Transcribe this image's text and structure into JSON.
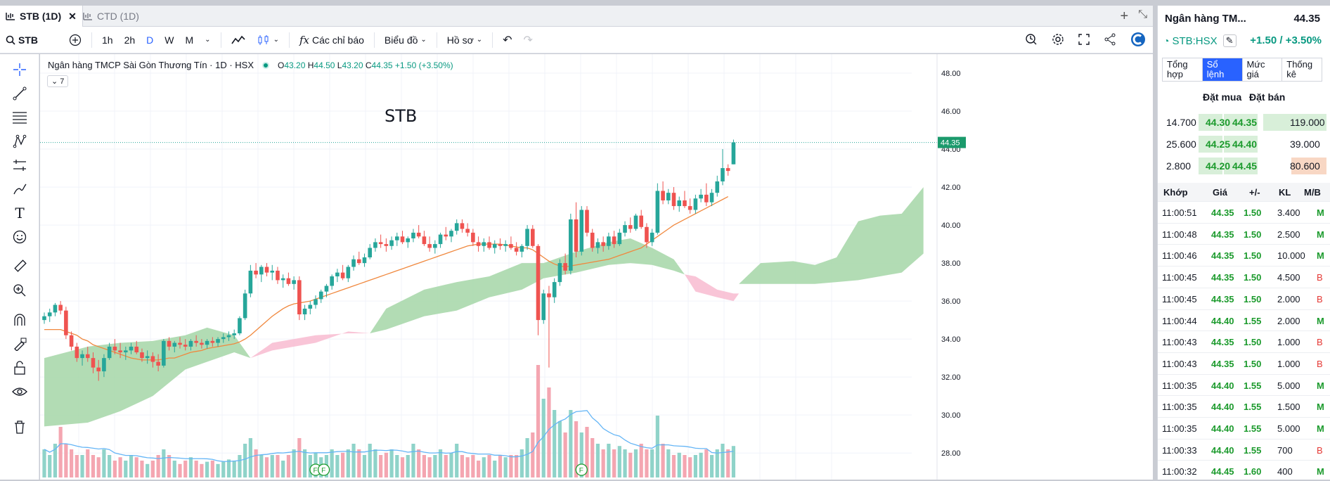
{
  "tabs": [
    {
      "label": "STB (1D)",
      "active": true
    },
    {
      "label": "CTD (1D)",
      "active": false
    }
  ],
  "toolbar": {
    "symbol": "STB",
    "intervals": [
      "1h",
      "2h",
      "D",
      "W",
      "M"
    ],
    "active_interval": "D",
    "indicators_label": "Các chỉ báo",
    "chart_label": "Biểu đồ",
    "profile_label": "Hồ sơ"
  },
  "legend": {
    "name": "Ngân hàng TMCP Sài Gòn Thương Tín · 1D · HSX",
    "o_label": "O",
    "o": "43.20",
    "h_label": "H",
    "h": "44.50",
    "l_label": "L",
    "l": "43.20",
    "c_label": "C",
    "c": "44.35",
    "change": "+1.50 (+3.50%)",
    "collapse_count": "7"
  },
  "chart_data": {
    "type": "candlestick",
    "watermark": "STB",
    "last_price_label": "44.35",
    "ylim": [
      26.6,
      49.0
    ],
    "yticks": [
      "48.00",
      "46.00",
      "44.00",
      "42.00",
      "40.00",
      "38.00",
      "36.00",
      "34.00",
      "32.00",
      "30.00",
      "28.00"
    ],
    "event_markers": [
      "F",
      "F",
      "F"
    ],
    "colors": {
      "up": "#26a69a",
      "down": "#ef5350",
      "ma": "#f0883e",
      "cloud_up": "#a5d6a7",
      "cloud_down": "#f8bbd0",
      "volume_ma": "#64b5f6"
    },
    "candles": [
      [
        35.0,
        35.4,
        34.8,
        35.2
      ],
      [
        35.2,
        35.6,
        34.9,
        35.4
      ],
      [
        35.4,
        35.9,
        35.2,
        35.8
      ],
      [
        35.8,
        36.0,
        35.3,
        35.5
      ],
      [
        35.5,
        35.7,
        34.0,
        34.2
      ],
      [
        34.2,
        34.4,
        33.4,
        33.6
      ],
      [
        33.6,
        33.8,
        32.8,
        33.0
      ],
      [
        33.0,
        33.4,
        32.6,
        33.2
      ],
      [
        33.2,
        33.6,
        32.8,
        33.0
      ],
      [
        33.0,
        33.3,
        32.2,
        32.5
      ],
      [
        32.5,
        32.9,
        31.8,
        32.3
      ],
      [
        32.3,
        33.2,
        32.0,
        33.0
      ],
      [
        33.0,
        33.8,
        32.9,
        33.6
      ],
      [
        33.6,
        34.0,
        33.2,
        33.4
      ],
      [
        33.4,
        33.8,
        33.0,
        33.3
      ],
      [
        33.3,
        33.6,
        32.9,
        33.4
      ],
      [
        33.4,
        33.8,
        33.2,
        33.6
      ],
      [
        33.6,
        33.9,
        33.2,
        33.3
      ],
      [
        33.3,
        33.5,
        32.8,
        33.0
      ],
      [
        33.0,
        33.4,
        32.7,
        33.1
      ],
      [
        33.1,
        33.3,
        32.5,
        32.8
      ],
      [
        32.8,
        33.2,
        32.3,
        32.6
      ],
      [
        32.6,
        34.0,
        32.5,
        33.9
      ],
      [
        33.9,
        34.1,
        33.4,
        33.6
      ],
      [
        33.6,
        33.9,
        33.3,
        33.8
      ],
      [
        33.8,
        34.1,
        33.5,
        33.7
      ],
      [
        33.7,
        34.0,
        33.4,
        33.6
      ],
      [
        33.6,
        34.0,
        33.4,
        33.9
      ],
      [
        33.9,
        34.2,
        33.6,
        33.8
      ],
      [
        33.8,
        34.0,
        33.5,
        33.7
      ],
      [
        33.7,
        34.0,
        33.5,
        33.9
      ],
      [
        33.9,
        34.1,
        33.6,
        33.8
      ],
      [
        33.8,
        34.1,
        33.6,
        34.0
      ],
      [
        34.0,
        34.3,
        33.8,
        34.1
      ],
      [
        34.1,
        34.4,
        33.9,
        34.2
      ],
      [
        34.2,
        34.5,
        34.0,
        34.3
      ],
      [
        34.3,
        35.2,
        34.2,
        35.1
      ],
      [
        35.1,
        36.6,
        35.0,
        36.4
      ],
      [
        36.4,
        37.9,
        36.2,
        37.6
      ],
      [
        37.6,
        38.0,
        37.2,
        37.4
      ],
      [
        37.4,
        37.9,
        37.0,
        37.8
      ],
      [
        37.8,
        38.0,
        37.3,
        37.5
      ],
      [
        37.5,
        37.9,
        37.1,
        37.6
      ],
      [
        37.6,
        37.8,
        36.9,
        37.1
      ],
      [
        37.1,
        37.4,
        36.7,
        37.2
      ],
      [
        37.2,
        37.5,
        36.8,
        36.9
      ],
      [
        36.9,
        37.3,
        36.6,
        37.1
      ],
      [
        37.1,
        37.3,
        35.0,
        35.3
      ],
      [
        35.3,
        35.8,
        35.0,
        35.6
      ],
      [
        35.6,
        36.0,
        35.3,
        35.8
      ],
      [
        35.8,
        36.3,
        35.6,
        36.1
      ],
      [
        36.1,
        36.6,
        35.9,
        36.5
      ],
      [
        36.5,
        36.9,
        36.2,
        36.8
      ],
      [
        36.8,
        37.4,
        36.6,
        37.3
      ],
      [
        37.3,
        37.7,
        37.0,
        37.5
      ],
      [
        37.5,
        37.9,
        37.1,
        37.2
      ],
      [
        37.2,
        37.9,
        37.0,
        37.8
      ],
      [
        37.8,
        38.4,
        37.6,
        38.2
      ],
      [
        38.2,
        38.6,
        37.9,
        38.0
      ],
      [
        38.0,
        38.5,
        37.8,
        38.3
      ],
      [
        38.3,
        39.0,
        38.2,
        38.8
      ],
      [
        38.8,
        39.3,
        38.6,
        39.1
      ],
      [
        39.1,
        39.5,
        38.8,
        39.0
      ],
      [
        39.0,
        39.3,
        38.6,
        38.9
      ],
      [
        38.9,
        39.4,
        38.7,
        39.2
      ],
      [
        39.2,
        39.6,
        38.9,
        39.4
      ],
      [
        39.4,
        39.7,
        39.0,
        39.1
      ],
      [
        39.1,
        39.4,
        38.8,
        39.3
      ],
      [
        39.3,
        39.8,
        39.1,
        39.6
      ],
      [
        39.6,
        40.0,
        39.3,
        39.4
      ],
      [
        39.4,
        39.7,
        38.9,
        39.0
      ],
      [
        39.0,
        39.4,
        38.6,
        38.8
      ],
      [
        38.8,
        39.2,
        38.5,
        39.0
      ],
      [
        39.0,
        39.6,
        38.8,
        39.5
      ],
      [
        39.5,
        39.9,
        39.2,
        39.4
      ],
      [
        39.4,
        39.8,
        39.1,
        39.7
      ],
      [
        39.7,
        40.3,
        39.5,
        40.1
      ],
      [
        40.1,
        40.3,
        39.6,
        39.8
      ],
      [
        39.8,
        40.1,
        39.4,
        39.6
      ],
      [
        39.6,
        39.8,
        38.9,
        39.1
      ],
      [
        39.1,
        39.4,
        38.6,
        38.9
      ],
      [
        38.9,
        39.3,
        38.6,
        39.1
      ],
      [
        39.1,
        39.4,
        38.7,
        38.8
      ],
      [
        38.8,
        39.2,
        38.5,
        39.0
      ],
      [
        39.0,
        39.3,
        38.7,
        38.9
      ],
      [
        38.9,
        39.2,
        38.6,
        39.0
      ],
      [
        39.0,
        39.4,
        38.7,
        38.8
      ],
      [
        38.8,
        39.1,
        38.4,
        38.6
      ],
      [
        38.6,
        39.0,
        38.3,
        38.9
      ],
      [
        38.9,
        40.0,
        38.7,
        39.8
      ],
      [
        39.8,
        40.0,
        38.8,
        38.9
      ],
      [
        38.9,
        39.0,
        34.2,
        35.0
      ],
      [
        35.0,
        36.6,
        34.8,
        36.4
      ],
      [
        36.4,
        36.8,
        32.5,
        36.2
      ],
      [
        36.2,
        37.2,
        35.9,
        37.0
      ],
      [
        37.0,
        38.2,
        36.8,
        38.0
      ],
      [
        38.0,
        38.5,
        37.4,
        37.6
      ],
      [
        37.6,
        40.6,
        37.4,
        40.3
      ],
      [
        40.3,
        41.2,
        38.3,
        38.6
      ],
      [
        38.6,
        41.0,
        38.4,
        40.8
      ],
      [
        40.8,
        41.0,
        39.4,
        39.6
      ],
      [
        39.6,
        39.8,
        38.6,
        38.8
      ],
      [
        38.8,
        39.3,
        38.5,
        39.1
      ],
      [
        39.1,
        39.4,
        38.6,
        38.9
      ],
      [
        38.9,
        39.6,
        38.7,
        39.4
      ],
      [
        39.4,
        39.7,
        38.8,
        39.0
      ],
      [
        39.0,
        39.8,
        38.9,
        39.6
      ],
      [
        39.6,
        40.2,
        39.4,
        40.0
      ],
      [
        40.0,
        40.4,
        39.6,
        39.8
      ],
      [
        39.8,
        40.6,
        39.7,
        40.5
      ],
      [
        40.5,
        40.8,
        39.8,
        39.9
      ],
      [
        39.9,
        40.1,
        38.8,
        39.1
      ],
      [
        39.1,
        39.8,
        38.9,
        39.6
      ],
      [
        39.6,
        42.2,
        39.5,
        41.8
      ],
      [
        41.8,
        42.3,
        41.1,
        41.3
      ],
      [
        41.3,
        41.9,
        41.1,
        41.7
      ],
      [
        41.7,
        42.0,
        40.8,
        41.0
      ],
      [
        41.0,
        41.5,
        40.7,
        41.3
      ],
      [
        41.3,
        41.8,
        40.9,
        41.0
      ],
      [
        41.0,
        41.4,
        40.6,
        40.8
      ],
      [
        40.8,
        41.6,
        40.6,
        41.4
      ],
      [
        41.4,
        41.9,
        41.2,
        41.6
      ],
      [
        41.6,
        42.2,
        41.0,
        41.2
      ],
      [
        41.2,
        41.9,
        41.0,
        41.7
      ],
      [
        41.7,
        42.6,
        41.5,
        42.3
      ],
      [
        42.3,
        44.0,
        42.1,
        43.0
      ],
      [
        43.0,
        43.2,
        42.6,
        42.85
      ],
      [
        43.2,
        44.5,
        43.2,
        44.35
      ]
    ],
    "ma": [
      34.5,
      34.5,
      34.5,
      34.5,
      34.4,
      34.3,
      34.2,
      34.0,
      33.9,
      33.7,
      33.6,
      33.5,
      33.4,
      33.3,
      33.2,
      33.1,
      33.0,
      32.95,
      32.9,
      32.9,
      32.9,
      32.9,
      32.95,
      33.0,
      33.0,
      33.1,
      33.2,
      33.3,
      33.35,
      33.4,
      33.5,
      33.55,
      33.6,
      33.65,
      33.7,
      33.75,
      33.85,
      34.0,
      34.2,
      34.45,
      34.7,
      34.95,
      35.2,
      35.4,
      35.6,
      35.75,
      35.85,
      35.9,
      35.95,
      36.0,
      36.1,
      36.2,
      36.3,
      36.4,
      36.5,
      36.6,
      36.7,
      36.8,
      36.9,
      37.0,
      37.1,
      37.2,
      37.3,
      37.4,
      37.5,
      37.6,
      37.7,
      37.8,
      37.9,
      38.0,
      38.1,
      38.2,
      38.3,
      38.4,
      38.5,
      38.6,
      38.7,
      38.8,
      38.9,
      38.95,
      39.0,
      39.0,
      39.0,
      39.0,
      39.0,
      38.95,
      38.9,
      38.85,
      38.8,
      38.8,
      38.7,
      38.5,
      38.3,
      38.1,
      37.95,
      37.85,
      37.8,
      37.85,
      37.9,
      37.95,
      38.0,
      38.05,
      38.1,
      38.15,
      38.2,
      38.3,
      38.4,
      38.5,
      38.6,
      38.7,
      38.8,
      39.0,
      39.2,
      39.4,
      39.6,
      39.8,
      40.0,
      40.15,
      40.3,
      40.45,
      40.6,
      40.75,
      40.9,
      41.05,
      41.2,
      41.35,
      41.5
    ],
    "volume": [
      0.25,
      0.2,
      0.3,
      0.45,
      0.3,
      0.25,
      0.2,
      0.2,
      0.25,
      0.2,
      0.18,
      0.25,
      0.2,
      0.15,
      0.18,
      0.15,
      0.2,
      0.18,
      0.15,
      0.12,
      0.15,
      0.2,
      0.25,
      0.2,
      0.15,
      0.12,
      0.15,
      0.18,
      0.15,
      0.12,
      0.14,
      0.15,
      0.12,
      0.14,
      0.16,
      0.15,
      0.2,
      0.3,
      0.35,
      0.25,
      0.2,
      0.18,
      0.2,
      0.2,
      0.15,
      0.2,
      0.25,
      0.35,
      0.25,
      0.2,
      0.22,
      0.18,
      0.2,
      0.25,
      0.2,
      0.22,
      0.25,
      0.3,
      0.25,
      0.2,
      0.3,
      0.25,
      0.2,
      0.22,
      0.25,
      0.2,
      0.18,
      0.2,
      0.3,
      0.25,
      0.2,
      0.18,
      0.2,
      0.25,
      0.2,
      0.22,
      0.3,
      0.2,
      0.18,
      0.2,
      0.15,
      0.18,
      0.2,
      0.15,
      0.2,
      0.18,
      0.2,
      0.2,
      0.25,
      0.35,
      0.4,
      1.0,
      0.7,
      0.8,
      0.6,
      0.5,
      0.4,
      0.6,
      0.5,
      0.4,
      0.45,
      0.35,
      0.3,
      0.25,
      0.3,
      0.25,
      0.28,
      0.25,
      0.22,
      0.25,
      0.3,
      0.25,
      0.25,
      0.55,
      0.3,
      0.25,
      0.2,
      0.22,
      0.2,
      0.18,
      0.2,
      0.22,
      0.25,
      0.2,
      0.25,
      0.3,
      0.25,
      0.28
    ],
    "cloud": [
      [
        0,
        29.4,
        33.0,
        "up"
      ],
      [
        8,
        29.6,
        33.6,
        "up"
      ],
      [
        14,
        30.2,
        33.8,
        "up"
      ],
      [
        20,
        31.0,
        33.9,
        "up"
      ],
      [
        26,
        32.4,
        34.2,
        "up"
      ],
      [
        30,
        32.8,
        34.6,
        "up"
      ],
      [
        35,
        33.3,
        34.2,
        "up"
      ],
      [
        38,
        33.0,
        33.0,
        "up"
      ],
      [
        38,
        33.0,
        33.0,
        "down"
      ],
      [
        42,
        33.4,
        33.8,
        "down"
      ],
      [
        50,
        33.8,
        34.2,
        "down"
      ],
      [
        56,
        34.4,
        34.3,
        "down"
      ],
      [
        60,
        34.3,
        34.3,
        "down"
      ],
      [
        60,
        34.3,
        34.3,
        "up"
      ],
      [
        63,
        34.5,
        35.6,
        "up"
      ],
      [
        70,
        35.2,
        36.6,
        "up"
      ],
      [
        76,
        35.5,
        37.0,
        "up"
      ],
      [
        82,
        36.2,
        37.3,
        "up"
      ],
      [
        88,
        36.6,
        38.0,
        "up"
      ],
      [
        92,
        37.2,
        38.0,
        "up"
      ],
      [
        98,
        37.5,
        38.6,
        "up"
      ],
      [
        104,
        37.9,
        39.1,
        "up"
      ],
      [
        108,
        38.0,
        39.3,
        "up"
      ],
      [
        112,
        37.9,
        38.8,
        "up"
      ],
      [
        116,
        37.6,
        38.2,
        "up"
      ],
      [
        118,
        37.4,
        37.4,
        "up"
      ],
      [
        118,
        37.4,
        37.4,
        "down"
      ],
      [
        120,
        36.5,
        37.3,
        "down"
      ],
      [
        124,
        36.2,
        36.6,
        "down"
      ],
      [
        127,
        36.0,
        36.4,
        "down"
      ],
      [
        128,
        36.4,
        36.4,
        "down"
      ]
    ],
    "cloud_future": [
      [
        128,
        36.9,
        36.9
      ],
      [
        132,
        36.9,
        38.0
      ],
      [
        138,
        36.9,
        38.1
      ],
      [
        142,
        36.9,
        37.9
      ],
      [
        146,
        37.0,
        38.3
      ],
      [
        150,
        37.1,
        40.2
      ],
      [
        154,
        37.3,
        40.5
      ],
      [
        158,
        37.5,
        40.6
      ],
      [
        162,
        38.5,
        42.0
      ]
    ]
  },
  "right_panel": {
    "title": "Ngân hàng TM...",
    "price": "44.35",
    "symbol": "STB:HSX",
    "change": "+1.50 / +3.50%",
    "tabs": [
      {
        "line1": "Tổng",
        "line2": "hợp"
      },
      {
        "line1": "Sổ",
        "line2": "lệnh"
      },
      {
        "line1": "Mức",
        "line2": "giá"
      },
      {
        "line1": "Thống",
        "line2": "kê"
      }
    ],
    "active_tab_index": 1,
    "orderbook_headers": {
      "bid": "Đặt mua",
      "ask": "Đặt bán"
    },
    "orderbook": [
      {
        "bid_vol": "14.700",
        "bid": "44.30",
        "ask": "44.35",
        "ask_vol": "119.000",
        "ask_vol_bar": 0.9
      },
      {
        "bid_vol": "25.600",
        "bid": "44.25",
        "ask": "44.40",
        "ask_vol": "39.000",
        "ask_vol_bar": 0.0
      },
      {
        "bid_vol": "2.800",
        "bid": "44.20",
        "ask": "44.45",
        "ask_vol": "80.600",
        "ask_vol_bar": 0.0
      }
    ],
    "trade_headers": [
      "Khớp",
      "Giá",
      "+/-",
      "KL",
      "M/B"
    ],
    "trades": [
      [
        "11:00:51",
        "44.35",
        "1.50",
        "3.400",
        "M"
      ],
      [
        "11:00:48",
        "44.35",
        "1.50",
        "2.500",
        "M"
      ],
      [
        "11:00:46",
        "44.35",
        "1.50",
        "10.000",
        "M"
      ],
      [
        "11:00:45",
        "44.35",
        "1.50",
        "4.500",
        "B"
      ],
      [
        "11:00:45",
        "44.35",
        "1.50",
        "2.000",
        "B"
      ],
      [
        "11:00:44",
        "44.40",
        "1.55",
        "2.000",
        "M"
      ],
      [
        "11:00:43",
        "44.35",
        "1.50",
        "1.000",
        "B"
      ],
      [
        "11:00:43",
        "44.35",
        "1.50",
        "1.000",
        "B"
      ],
      [
        "11:00:35",
        "44.40",
        "1.55",
        "5.000",
        "M"
      ],
      [
        "11:00:35",
        "44.40",
        "1.55",
        "1.500",
        "M"
      ],
      [
        "11:00:35",
        "44.40",
        "1.55",
        "5.000",
        "M"
      ],
      [
        "11:00:33",
        "44.40",
        "1.55",
        "700",
        "B"
      ],
      [
        "11:00:32",
        "44.45",
        "1.60",
        "400",
        "M"
      ]
    ]
  }
}
